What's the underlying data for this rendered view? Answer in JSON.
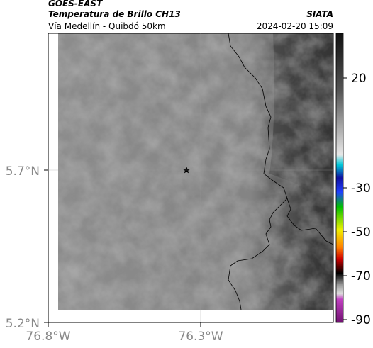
{
  "header": {
    "source": "GOES-EAST",
    "title": "Temperatura de Brillo CH13",
    "brand": "SIATA",
    "subtitle": "Vía Medellín - Quibdó 50km",
    "timestamp": "2024-02-20 15:09"
  },
  "map": {
    "lat_ticks": [
      {
        "value": 5.7,
        "label": "5.7°N"
      },
      {
        "value": 5.2,
        "label": "5.2°N"
      }
    ],
    "lon_ticks": [
      {
        "value": -76.8,
        "label": "76.8°W"
      },
      {
        "value": -76.3,
        "label": "76.3°W"
      }
    ],
    "colorbar_ticks": [
      20,
      -30,
      -50,
      -70,
      -90
    ]
  }
}
